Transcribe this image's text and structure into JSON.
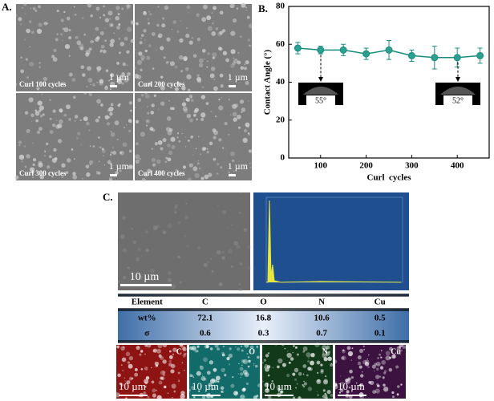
{
  "panels": {
    "a": "A.",
    "b": "B.",
    "c": "C."
  },
  "sem_images": [
    {
      "caption": "Curl 100 cycles",
      "scale": "1 µm"
    },
    {
      "caption": "Curl 200 cycles",
      "scale": "1 µm"
    },
    {
      "caption": "Curl 300 cycles",
      "scale": "1 µm"
    },
    {
      "caption": "Curl 400 cycles",
      "scale": "1 µm"
    }
  ],
  "chart_data": {
    "type": "line",
    "x_label": "Curl  cycles",
    "y_label": "Contact Angle (°)",
    "x": [
      50,
      100,
      150,
      200,
      250,
      300,
      350,
      400,
      450
    ],
    "series": [
      {
        "name": "Contact angle",
        "color": "#1a8c7d",
        "values": [
          58,
          57,
          57,
          55,
          57,
          54,
          53,
          53,
          54
        ],
        "errors": [
          3,
          2,
          3,
          3,
          5,
          3,
          6,
          5,
          4
        ]
      }
    ],
    "xlim": [
      30,
      470
    ],
    "xticks": [
      100,
      200,
      300,
      400
    ],
    "ylim": [
      0,
      80
    ],
    "yticks": [
      0,
      20,
      40,
      60,
      80
    ],
    "annotations": [
      "55°",
      "52°"
    ]
  },
  "sem_c": {
    "scale": "10 µm"
  },
  "table": {
    "header": [
      "Element",
      "C",
      "O",
      "N",
      "Cu"
    ],
    "rows": [
      [
        "wt%",
        "72.1",
        "16.8",
        "10.6",
        "0.5"
      ],
      [
        "σ",
        "0.6",
        "0.3",
        "0.7",
        "0.1"
      ]
    ]
  },
  "maps": [
    {
      "element": "C",
      "scale": "10 µm",
      "color": "#8e1414"
    },
    {
      "element": "O",
      "scale": "10 µm",
      "color": "#126b68"
    },
    {
      "element": "N",
      "scale": "10 µm",
      "color": "#123a1a"
    },
    {
      "element": "Cu",
      "scale": "10 µm",
      "color": "#3c1240"
    }
  ]
}
